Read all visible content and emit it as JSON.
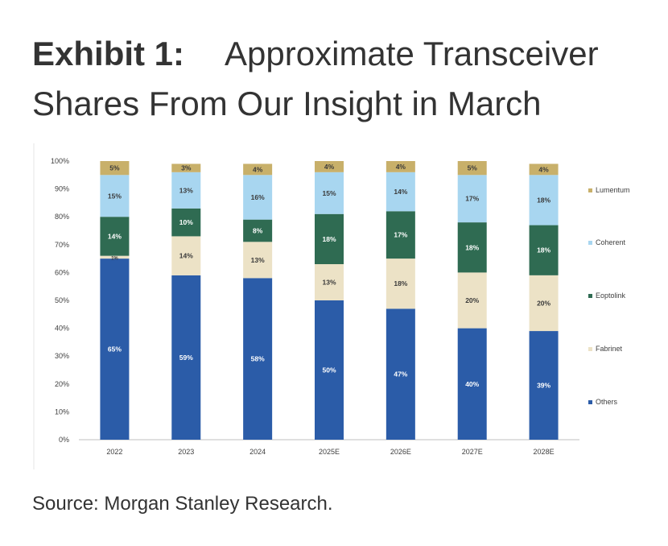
{
  "exhibit_label": "Exhibit 1:",
  "title_line1": "Approximate Transceiver",
  "title_line2": "Shares From Our Insight in March",
  "source": "Source: Morgan Stanley Research.",
  "chart_data": {
    "type": "bar",
    "stacked": true,
    "categories": [
      "2022",
      "2023",
      "2024",
      "2025E",
      "2026E",
      "2027E",
      "2028E"
    ],
    "series": [
      {
        "name": "Others",
        "color": "#2b5ca8",
        "values": [
          65,
          59,
          58,
          50,
          47,
          40,
          39
        ],
        "labels": [
          "65%",
          "59%",
          "58%",
          "50%",
          "47%",
          "40%",
          "39%"
        ]
      },
      {
        "name": "Fabrinet",
        "color": "#ece2c6",
        "values": [
          1,
          14,
          13,
          13,
          18,
          20,
          20
        ],
        "labels": [
          "1%",
          "14%",
          "13%",
          "13%",
          "18%",
          "20%",
          "20%"
        ]
      },
      {
        "name": "Eoptolink",
        "color": "#2f6b52",
        "values": [
          14,
          10,
          8,
          18,
          17,
          18,
          18
        ],
        "labels": [
          "14%",
          "10%",
          "8%",
          "18%",
          "17%",
          "18%",
          "18%"
        ]
      },
      {
        "name": "Coherent",
        "color": "#a8d6f0",
        "values": [
          15,
          13,
          16,
          15,
          14,
          17,
          18
        ],
        "labels": [
          "15%",
          "13%",
          "16%",
          "15%",
          "14%",
          "17%",
          "18%"
        ]
      },
      {
        "name": "Lumentum",
        "color": "#c8b06a",
        "values": [
          5,
          3,
          4,
          4,
          4,
          5,
          4
        ],
        "labels": [
          "5%",
          "3%",
          "4%",
          "4%",
          "4%",
          "5%",
          "4%"
        ]
      }
    ],
    "legend_order": [
      "Lumentum",
      "Coherent",
      "Eoptolink",
      "Fabrinet",
      "Others"
    ],
    "yticks": [
      "0%",
      "10%",
      "20%",
      "30%",
      "40%",
      "50%",
      "60%",
      "70%",
      "80%",
      "90%",
      "100%"
    ],
    "ylim": [
      0,
      100
    ],
    "grid": false,
    "legend_position": "right"
  }
}
